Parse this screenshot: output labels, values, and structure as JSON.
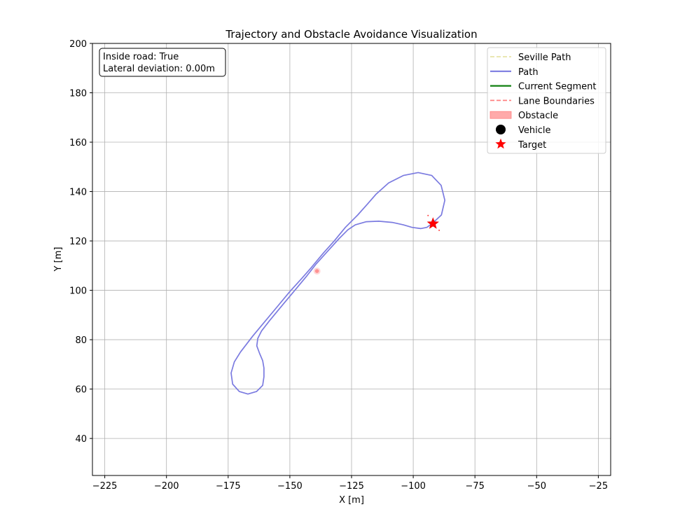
{
  "chart_data": {
    "type": "line",
    "title": "Trajectory and Obstacle Avoidance Visualization",
    "xlabel": "X [m]",
    "ylabel": "Y [m]",
    "xlim": [
      -230,
      -20
    ],
    "ylim": [
      25,
      200
    ],
    "xticks": [
      -225,
      -200,
      -175,
      -150,
      -125,
      -100,
      -75,
      -50,
      -25
    ],
    "yticks": [
      40,
      60,
      80,
      100,
      120,
      140,
      160,
      180,
      200
    ],
    "xtick_labels": [
      "−225",
      "−200",
      "−175",
      "−150",
      "−125",
      "−100",
      "−75",
      "−50",
      "−25"
    ],
    "ytick_labels": [
      "40",
      "60",
      "80",
      "100",
      "120",
      "140",
      "160",
      "180",
      "200"
    ],
    "grid": true,
    "legend_position": "top-right",
    "info_box": [
      "Inside road: True",
      "Lateral deviation: 0.00m"
    ],
    "legend": [
      {
        "label": "Seville Path",
        "kind": "dashed-line",
        "color": "#e8e4a8"
      },
      {
        "label": "Path",
        "kind": "line",
        "color": "#7b7be0"
      },
      {
        "label": "Current Segment",
        "kind": "line",
        "color": "#108010"
      },
      {
        "label": "Lane Boundaries",
        "kind": "dashed-line",
        "color": "#ff8080"
      },
      {
        "label": "Obstacle",
        "kind": "patch",
        "color": "#ffaaaa"
      },
      {
        "label": "Vehicle",
        "kind": "circle",
        "color": "#000000"
      },
      {
        "label": "Target",
        "kind": "star",
        "color": "#ff0000"
      }
    ],
    "series": [
      {
        "name": "Path",
        "color": "#7b7be0",
        "points": [
          [
            -92.4,
            127.0
          ],
          [
            -88.6,
            130.5
          ],
          [
            -87.2,
            136.5
          ],
          [
            -88.7,
            142.5
          ],
          [
            -92.5,
            146.5
          ],
          [
            -98.0,
            147.7
          ],
          [
            -104.0,
            146.5
          ],
          [
            -110.0,
            143.5
          ],
          [
            -115.0,
            139.0
          ],
          [
            -118.5,
            135.0
          ],
          [
            -122.5,
            130.5
          ],
          [
            -127.5,
            125.5
          ],
          [
            -132.0,
            120.0
          ],
          [
            -136.5,
            115.0
          ],
          [
            -140.0,
            110.8
          ],
          [
            -141.5,
            109.0
          ],
          [
            -145.0,
            105.0
          ],
          [
            -150.0,
            99.5
          ],
          [
            -155.0,
            93.5
          ],
          [
            -160.0,
            87.5
          ],
          [
            -165.0,
            81.5
          ],
          [
            -170.0,
            75.0
          ],
          [
            -172.5,
            71.0
          ],
          [
            -173.8,
            66.5
          ],
          [
            -173.2,
            62.0
          ],
          [
            -170.5,
            59.0
          ],
          [
            -167.0,
            58.0
          ],
          [
            -163.5,
            59.0
          ],
          [
            -161.0,
            61.5
          ],
          [
            -160.5,
            65.0
          ],
          [
            -160.5,
            68.5
          ],
          [
            -161.0,
            71.5
          ],
          [
            -162.3,
            74.5
          ],
          [
            -163.4,
            77.5
          ],
          [
            -163.0,
            80.5
          ],
          [
            -161.5,
            83.5
          ],
          [
            -158.0,
            88.0
          ],
          [
            -153.0,
            94.0
          ],
          [
            -148.0,
            100.0
          ],
          [
            -143.0,
            106.0
          ],
          [
            -139.5,
            110.5
          ],
          [
            -135.0,
            115.5
          ],
          [
            -130.0,
            121.0
          ],
          [
            -126.5,
            124.5
          ],
          [
            -123.5,
            126.5
          ],
          [
            -119.0,
            127.8
          ],
          [
            -114.0,
            128.0
          ],
          [
            -108.5,
            127.5
          ],
          [
            -104.0,
            126.5
          ],
          [
            -100.5,
            125.5
          ],
          [
            -97.0,
            125.0
          ],
          [
            -94.5,
            125.5
          ],
          [
            -92.4,
            127.0
          ]
        ]
      }
    ],
    "obstacle": {
      "x": -139.0,
      "y": 107.8
    },
    "target": {
      "x": -92.0,
      "y": 127.0
    },
    "lane_boundary_points": [
      [
        -94.0,
        130.3
      ],
      [
        -89.5,
        124.3
      ]
    ]
  }
}
